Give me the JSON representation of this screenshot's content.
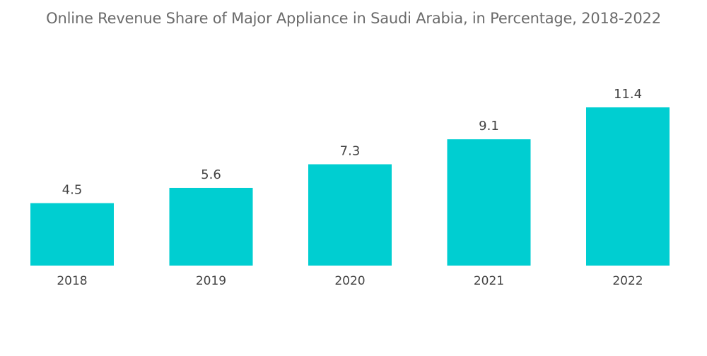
{
  "chart_data": {
    "type": "bar",
    "title": "Online Revenue Share of Major Appliance in Saudi Arabia, in Percentage, 2018-2022",
    "categories": [
      "2018",
      "2019",
      "2020",
      "2021",
      "2022"
    ],
    "values": [
      4.5,
      5.6,
      7.3,
      9.1,
      11.4
    ],
    "value_labels": [
      "4.5",
      "5.6",
      "7.3",
      "9.1",
      "11.4"
    ],
    "xlabel": "",
    "ylabel": "",
    "ylim": [
      0,
      12
    ],
    "grid": false,
    "legend": "none",
    "bar_color": "#00ced1"
  }
}
